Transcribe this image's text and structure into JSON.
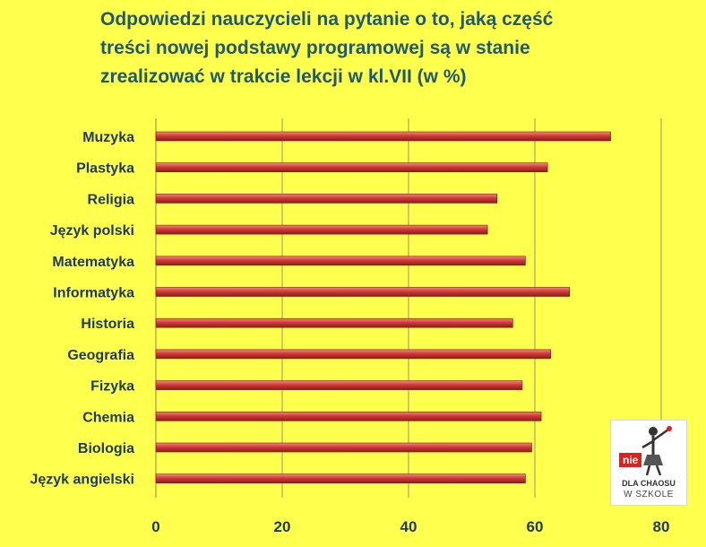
{
  "chart_data": {
    "type": "bar",
    "orientation": "horizontal",
    "title_lines": [
      "Odpowiedzi nauczycieli na pytanie o to, jaką część",
      "treści nowej podstawy programowej są w stanie",
      "zrealizować w trakcie lekcji w kl.VII (w %)"
    ],
    "categories": [
      "Muzyka",
      "Plastyka",
      "Religia",
      "Język polski",
      "Matematyka",
      "Informatyka",
      "Historia",
      "Geografia",
      "Fizyka",
      "Chemia",
      "Biologia",
      "Język angielski"
    ],
    "values": [
      72,
      62,
      54,
      52.5,
      58.5,
      65.5,
      56.5,
      62.5,
      58,
      61,
      59.5,
      58.5
    ],
    "xlim": [
      0,
      80
    ],
    "xticks": [
      0,
      20,
      40,
      60,
      80
    ],
    "grid": "vertical",
    "bar_color": "#d03a38",
    "background_color": "#ffff4d",
    "label_color": "#1f3a5a"
  },
  "logo": {
    "badge": "nie",
    "line1": "DLA CHAOSU",
    "line2": "W SZKOLE"
  }
}
